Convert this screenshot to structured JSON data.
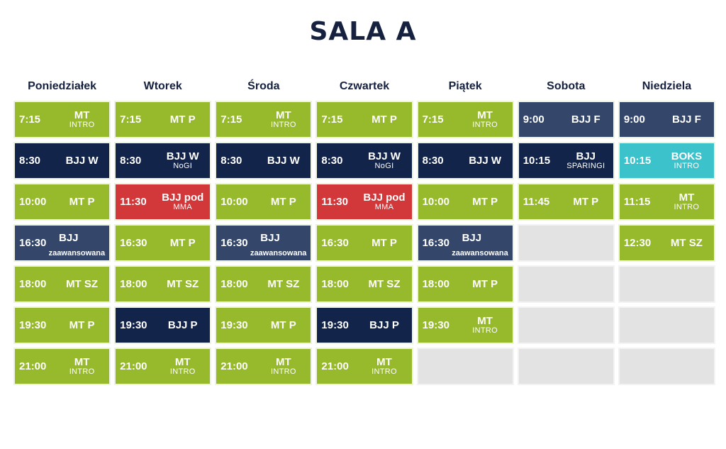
{
  "title": "SALA A",
  "days": [
    {
      "name": "Poniedziałek",
      "cells": [
        {
          "time": "7:15",
          "name": "MT",
          "sub": "INTRO",
          "color": "green"
        },
        {
          "time": "8:30",
          "name": "BJJ W",
          "sub": "",
          "color": "navy"
        },
        {
          "time": "10:00",
          "name": "MT P",
          "sub": "",
          "color": "green"
        },
        {
          "time": "16:30",
          "name": "BJJ",
          "sub_right": "zaawansowana",
          "color": "slate"
        },
        {
          "time": "18:00",
          "name": "MT SZ",
          "sub": "",
          "color": "green"
        },
        {
          "time": "19:30",
          "name": "MT P",
          "sub": "",
          "color": "green"
        },
        {
          "time": "21:00",
          "name": "MT",
          "sub": "INTRO",
          "color": "green"
        }
      ]
    },
    {
      "name": "Wtorek",
      "cells": [
        {
          "time": "7:15",
          "name": "MT P",
          "sub": "",
          "color": "green"
        },
        {
          "time": "8:30",
          "name": "BJJ W",
          "sub": "NoGI",
          "color": "navy"
        },
        {
          "time": "11:30",
          "name": "BJJ pod",
          "sub": "MMA",
          "color": "red"
        },
        {
          "time": "16:30",
          "name": "MT P",
          "sub": "",
          "color": "green"
        },
        {
          "time": "18:00",
          "name": "MT SZ",
          "sub": "",
          "color": "green"
        },
        {
          "time": "19:30",
          "name": "BJJ P",
          "sub": "",
          "color": "navy"
        },
        {
          "time": "21:00",
          "name": "MT",
          "sub": "INTRO",
          "color": "green"
        }
      ]
    },
    {
      "name": "Środa",
      "cells": [
        {
          "time": "7:15",
          "name": "MT",
          "sub": "INTRO",
          "color": "green"
        },
        {
          "time": "8:30",
          "name": "BJJ W",
          "sub": "",
          "color": "navy"
        },
        {
          "time": "10:00",
          "name": "MT P",
          "sub": "",
          "color": "green"
        },
        {
          "time": "16:30",
          "name": "BJJ",
          "sub_right": "zaawansowana",
          "color": "slate"
        },
        {
          "time": "18:00",
          "name": "MT SZ",
          "sub": "",
          "color": "green"
        },
        {
          "time": "19:30",
          "name": "MT P",
          "sub": "",
          "color": "green"
        },
        {
          "time": "21:00",
          "name": "MT",
          "sub": "INTRO",
          "color": "green"
        }
      ]
    },
    {
      "name": "Czwartek",
      "cells": [
        {
          "time": "7:15",
          "name": "MT P",
          "sub": "",
          "color": "green"
        },
        {
          "time": "8:30",
          "name": "BJJ W",
          "sub": "NoGI",
          "color": "navy"
        },
        {
          "time": "11:30",
          "name": "BJJ pod",
          "sub": "MMA",
          "color": "red"
        },
        {
          "time": "16:30",
          "name": "MT P",
          "sub": "",
          "color": "green"
        },
        {
          "time": "18:00",
          "name": "MT SZ",
          "sub": "",
          "color": "green"
        },
        {
          "time": "19:30",
          "name": "BJJ P",
          "sub": "",
          "color": "navy"
        },
        {
          "time": "21:00",
          "name": "MT",
          "sub": "INTRO",
          "color": "green"
        }
      ]
    },
    {
      "name": "Piątek",
      "cells": [
        {
          "time": "7:15",
          "name": "MT",
          "sub": "INTRO",
          "color": "green"
        },
        {
          "time": "8:30",
          "name": "BJJ W",
          "sub": "",
          "color": "navy"
        },
        {
          "time": "10:00",
          "name": "MT P",
          "sub": "",
          "color": "green"
        },
        {
          "time": "16:30",
          "name": "BJJ",
          "sub_right": "zaawansowana",
          "color": "slate"
        },
        {
          "time": "18:00",
          "name": "MT P",
          "sub": "",
          "color": "green"
        },
        {
          "time": "19:30",
          "name": "MT",
          "sub": "INTRO",
          "color": "green"
        },
        {
          "empty": true
        }
      ]
    },
    {
      "name": "Sobota",
      "cells": [
        {
          "time": "9:00",
          "name": "BJJ F",
          "sub": "",
          "color": "slate"
        },
        {
          "time": "10:15",
          "name": "BJJ",
          "sub": "SPARINGI",
          "color": "navy"
        },
        {
          "time": "11:45",
          "name": "MT P",
          "sub": "",
          "color": "green"
        },
        {
          "empty": true
        },
        {
          "empty": true
        },
        {
          "empty": true
        },
        {
          "empty": true
        }
      ]
    },
    {
      "name": "Niedziela",
      "cells": [
        {
          "time": "9:00",
          "name": "BJJ F",
          "sub": "",
          "color": "slate"
        },
        {
          "time": "10:15",
          "name": "BOKS",
          "sub": "INTRO",
          "color": "teal"
        },
        {
          "time": "11:15",
          "name": "MT",
          "sub": "INTRO",
          "color": "green"
        },
        {
          "time": "12:30",
          "name": "MT SZ",
          "sub": "",
          "color": "green"
        },
        {
          "empty": true
        },
        {
          "empty": true
        },
        {
          "empty": true
        }
      ]
    }
  ]
}
